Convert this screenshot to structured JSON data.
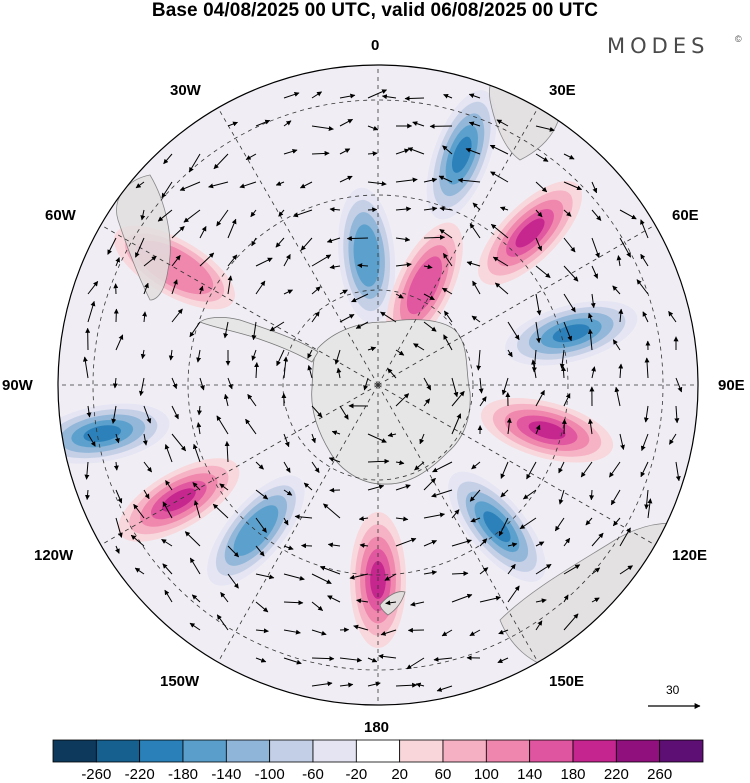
{
  "title": "Base 04/08/2025 00 UTC, valid 06/08/2025 00 UTC",
  "brand": "MODES",
  "brand_mark": "©",
  "longitude_labels": {
    "lon_0": "0",
    "lon_30E": "30E",
    "lon_60E": "60E",
    "lon_90E": "90E",
    "lon_120E": "120E",
    "lon_150E": "150E",
    "lon_180": "180",
    "lon_150W": "150W",
    "lon_120W": "120W",
    "lon_90W": "90W",
    "lon_60W": "60W",
    "lon_30W": "30W"
  },
  "reference_vector": {
    "label": "30"
  },
  "colorbar": {
    "tick_labels": [
      "-260",
      "-220",
      "-180",
      "-140",
      "-100",
      "-60",
      "-20",
      "20",
      "60",
      "100",
      "140",
      "180",
      "220",
      "260"
    ],
    "colors": [
      "#0d3a5c",
      "#15608f",
      "#2a80b8",
      "#5a9fcc",
      "#8fb5d8",
      "#c3cfe6",
      "#e4e4f2",
      "#ffffff",
      "#f8d6da",
      "#f5b1c3",
      "#ef86ad",
      "#e0559f",
      "#c4258e",
      "#90117e",
      "#5e0f73"
    ]
  },
  "chart_data": {
    "type": "heatmap",
    "projection": "south polar stereographic",
    "title": "Base 04/08/2025 00 UTC, valid 06/08/2025 00 UTC",
    "color_levels": [
      -260,
      -220,
      -180,
      -140,
      -100,
      -60,
      -20,
      20,
      60,
      100,
      140,
      180,
      220,
      260
    ],
    "anomaly_centers": [
      {
        "lon": 20,
        "sign": "negative",
        "value": -200
      },
      {
        "lon": 45,
        "sign": "positive",
        "value": 160
      },
      {
        "lon": 75,
        "sign": "negative",
        "value": -180
      },
      {
        "lon": 105,
        "sign": "positive",
        "value": 180
      },
      {
        "lon": 140,
        "sign": "negative",
        "value": -180
      },
      {
        "lon": 180,
        "sign": "positive",
        "value": 180
      },
      {
        "lon": -140,
        "sign": "negative",
        "value": -140
      },
      {
        "lon": -120,
        "sign": "positive",
        "value": 160
      },
      {
        "lon": -100,
        "sign": "negative",
        "value": -180
      },
      {
        "lon": -60,
        "sign": "positive",
        "value": 100
      },
      {
        "lon": -5,
        "sign": "negative",
        "value": -140
      },
      {
        "lon": 25,
        "sign": "positive",
        "value": 140
      }
    ],
    "reference_vector": 30
  }
}
